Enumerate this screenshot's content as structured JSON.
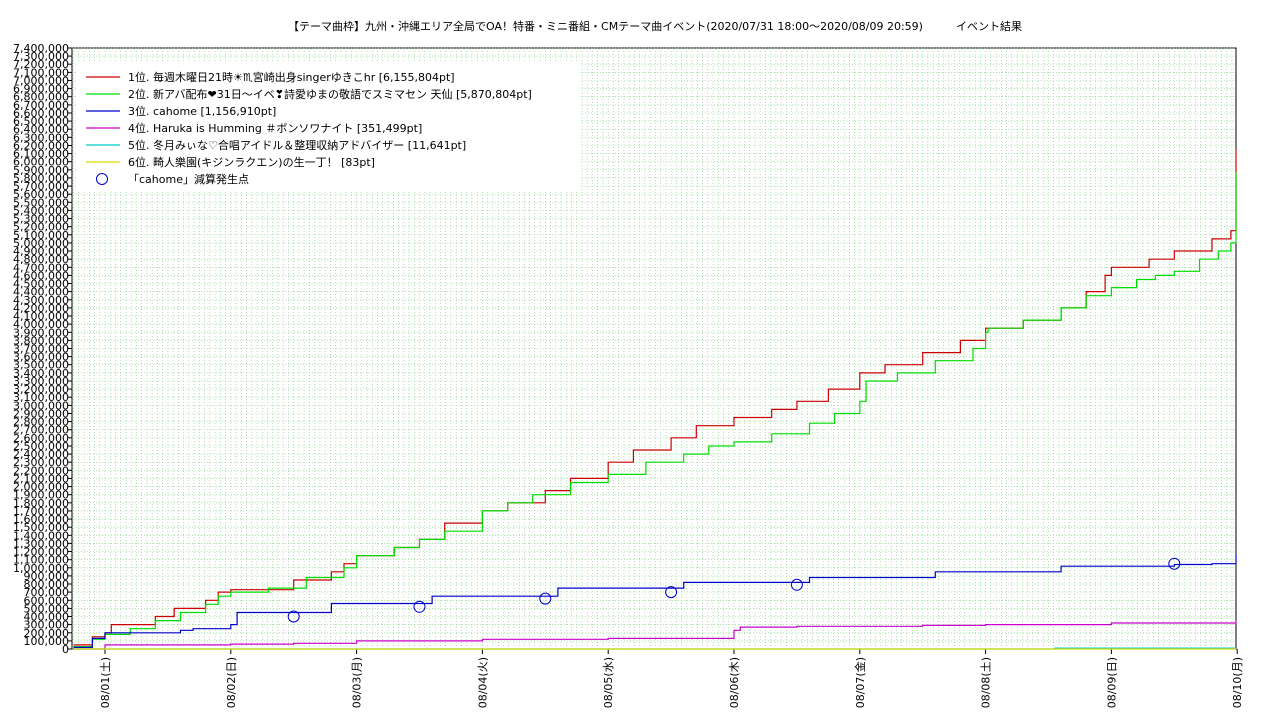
{
  "chart_data": {
    "type": "line",
    "title": "【テーマ曲枠】九州・沖縄エリア全局でOA！特番・ミニ番組・CMテーマ曲イベント(2020/07/31 18:00〜2020/08/09 20:59)　　　イベント結果",
    "xlabel": "",
    "ylabel": "",
    "ylim": [
      0,
      7400000
    ],
    "xlim": [
      0,
      9.25
    ],
    "grid": true,
    "legend_position": "top-left",
    "x_tick_labels": [
      "08/01(土)",
      "08/02(日)",
      "08/03(月)",
      "08/04(火)",
      "08/05(水)",
      "08/06(木)",
      "08/07(金)",
      "08/08(土)",
      "08/09(日)",
      "08/10(月)"
    ],
    "y_tick_labels": [
      "0",
      "100,000",
      "200,000",
      "300,000",
      "400,000",
      "500,000",
      "600,000",
      "700,000",
      "800,000",
      "900,000",
      "1,000,000",
      "1,100,000",
      "1,200,000",
      "1,300,000",
      "1,400,000",
      "1,500,000",
      "1,600,000",
      "1,700,000",
      "1,800,000",
      "1,900,000",
      "2,000,000",
      "2,100,000",
      "2,200,000",
      "2,300,000",
      "2,400,000",
      "2,500,000",
      "2,600,000",
      "2,700,000",
      "2,800,000",
      "2,900,000",
      "3,000,000",
      "3,100,000",
      "3,200,000",
      "3,300,000",
      "3,400,000",
      "3,500,000",
      "3,600,000",
      "3,700,000",
      "3,800,000",
      "3,900,000",
      "4,000,000",
      "4,100,000",
      "4,200,000",
      "4,300,000",
      "4,400,000",
      "4,500,000",
      "4,600,000",
      "4,700,000",
      "4,800,000",
      "4,900,000",
      "5,000,000",
      "5,100,000",
      "5,200,000",
      "5,300,000",
      "5,400,000",
      "5,500,000",
      "5,600,000",
      "5,700,000",
      "5,800,000",
      "5,900,000",
      "6,000,000",
      "6,100,000",
      "6,200,000",
      "6,300,000",
      "6,400,000",
      "6,500,000",
      "6,600,000",
      "6,700,000",
      "6,800,000",
      "6,900,000",
      "7,000,000",
      "7,100,000",
      "7,200,000",
      "7,300,000",
      "7,400,000"
    ],
    "series": [
      {
        "name": "1位. 毎週木曜日21時☀♏宮崎出身singerゆきこhr [6,155,804pt]",
        "color": "#cc0000",
        "x": [
          -0.25,
          -0.1,
          0.0,
          0.05,
          0.15,
          0.4,
          0.55,
          0.7,
          0.8,
          0.9,
          1.0,
          1.2,
          1.5,
          1.8,
          1.9,
          2.0,
          2.3,
          2.5,
          2.7,
          3.0,
          3.2,
          3.5,
          3.7,
          4.0,
          4.2,
          4.5,
          4.7,
          5.0,
          5.3,
          5.5,
          5.75,
          6.0,
          6.2,
          6.5,
          6.8,
          7.0,
          7.3,
          7.6,
          7.8,
          7.95,
          8.0,
          8.3,
          8.5,
          8.8,
          8.95,
          9.05,
          9.1,
          9.15,
          9.25
        ],
        "y": [
          50000,
          150000,
          200000,
          300000,
          300000,
          400000,
          500000,
          500000,
          600000,
          700000,
          730000,
          730000,
          850000,
          950000,
          1050000,
          1150000,
          1250000,
          1350000,
          1550000,
          1700000,
          1800000,
          1950000,
          2100000,
          2300000,
          2450000,
          2600000,
          2750000,
          2850000,
          2950000,
          3050000,
          3200000,
          3400000,
          3500000,
          3650000,
          3800000,
          3950000,
          4050000,
          4200000,
          4400000,
          4600000,
          4700000,
          4800000,
          4900000,
          5050000,
          5150000,
          5300000,
          5400000,
          6155804,
          6155804
        ]
      },
      {
        "name": "2位. 新アバ配布❤31日〜イベ❣詩愛ゆまの敬語でスミマセン 天仙 [5,870,804pt]",
        "color": "#00dd00",
        "x": [
          -0.25,
          -0.1,
          0.0,
          0.2,
          0.4,
          0.6,
          0.8,
          0.9,
          1.0,
          1.3,
          1.6,
          1.9,
          2.0,
          2.3,
          2.5,
          2.7,
          3.0,
          3.2,
          3.4,
          3.7,
          4.0,
          4.3,
          4.6,
          4.8,
          5.0,
          5.3,
          5.6,
          5.8,
          6.0,
          6.05,
          6.3,
          6.6,
          6.9,
          7.0,
          7.02,
          7.3,
          7.6,
          7.8,
          8.0,
          8.2,
          8.35,
          8.5,
          8.7,
          8.85,
          8.95,
          9.05,
          9.1,
          9.15,
          9.25
        ],
        "y": [
          30000,
          120000,
          180000,
          250000,
          350000,
          450000,
          550000,
          650000,
          700000,
          750000,
          880000,
          1000000,
          1150000,
          1250000,
          1350000,
          1450000,
          1700000,
          1800000,
          1900000,
          2050000,
          2150000,
          2300000,
          2400000,
          2500000,
          2550000,
          2650000,
          2780000,
          2900000,
          3050000,
          3300000,
          3400000,
          3550000,
          3700000,
          3900000,
          3950000,
          4050000,
          4200000,
          4350000,
          4450000,
          4550000,
          4600000,
          4650000,
          4800000,
          4900000,
          5000000,
          5200000,
          5400000,
          5870804,
          5870804
        ]
      },
      {
        "name": "3位. cahome [1,156,910pt]",
        "color": "#0000cc",
        "x": [
          -0.25,
          -0.1,
          0.0,
          0.5,
          0.6,
          0.7,
          1.0,
          1.05,
          1.5,
          1.7,
          1.8,
          2.3,
          2.6,
          2.75,
          3.2,
          3.5,
          3.6,
          4.0,
          4.5,
          4.6,
          5.0,
          5.5,
          5.6,
          6.0,
          6.5,
          6.6,
          7.0,
          7.5,
          7.6,
          8.0,
          8.5,
          8.8,
          9.0,
          9.1,
          9.25
        ],
        "y": [
          20000,
          130000,
          200000,
          200000,
          230000,
          250000,
          300000,
          450000,
          450000,
          450000,
          560000,
          560000,
          650000,
          650000,
          650000,
          650000,
          750000,
          750000,
          750000,
          820000,
          820000,
          820000,
          880000,
          880000,
          880000,
          950000,
          950000,
          950000,
          1020000,
          1020000,
          1040000,
          1050000,
          1050000,
          1156910,
          1156910
        ]
      },
      {
        "name": "4位. Haruka is Humming ＃ボンソワナイト [351,499pt]",
        "color": "#cc00cc",
        "x": [
          -0.25,
          -0.1,
          0.0,
          1.0,
          1.5,
          2.0,
          2.5,
          3.0,
          3.5,
          4.0,
          4.5,
          5.0,
          5.05,
          5.5,
          6.0,
          6.5,
          7.0,
          7.5,
          8.0,
          8.5,
          9.0,
          9.1,
          9.25
        ],
        "y": [
          0,
          0,
          50000,
          60000,
          70000,
          100000,
          100000,
          120000,
          120000,
          130000,
          130000,
          230000,
          270000,
          280000,
          280000,
          290000,
          300000,
          300000,
          320000,
          320000,
          330000,
          351499,
          351499
        ]
      },
      {
        "name": "5位. 冬月みぃな♡合唱アイドル＆整理収納アドバイザー [11,641pt]",
        "color": "#00cccc",
        "x": [
          -0.25,
          7.5,
          7.55,
          9.25
        ],
        "y": [
          0,
          0,
          11641,
          11641
        ]
      },
      {
        "name": "6位. 畸人樂園(キジンラクエン)の生一丁！ [83pt]",
        "color": "#dddd00",
        "x": [
          -0.25,
          9.25
        ],
        "y": [
          83,
          83
        ]
      }
    ],
    "markers": {
      "name": "「cahome」減算発生点",
      "color": "#0000cc",
      "x": [
        1.5,
        2.5,
        3.5,
        4.5,
        5.5,
        8.5
      ],
      "y": [
        400000,
        520000,
        620000,
        700000,
        790000,
        1050000
      ]
    }
  }
}
